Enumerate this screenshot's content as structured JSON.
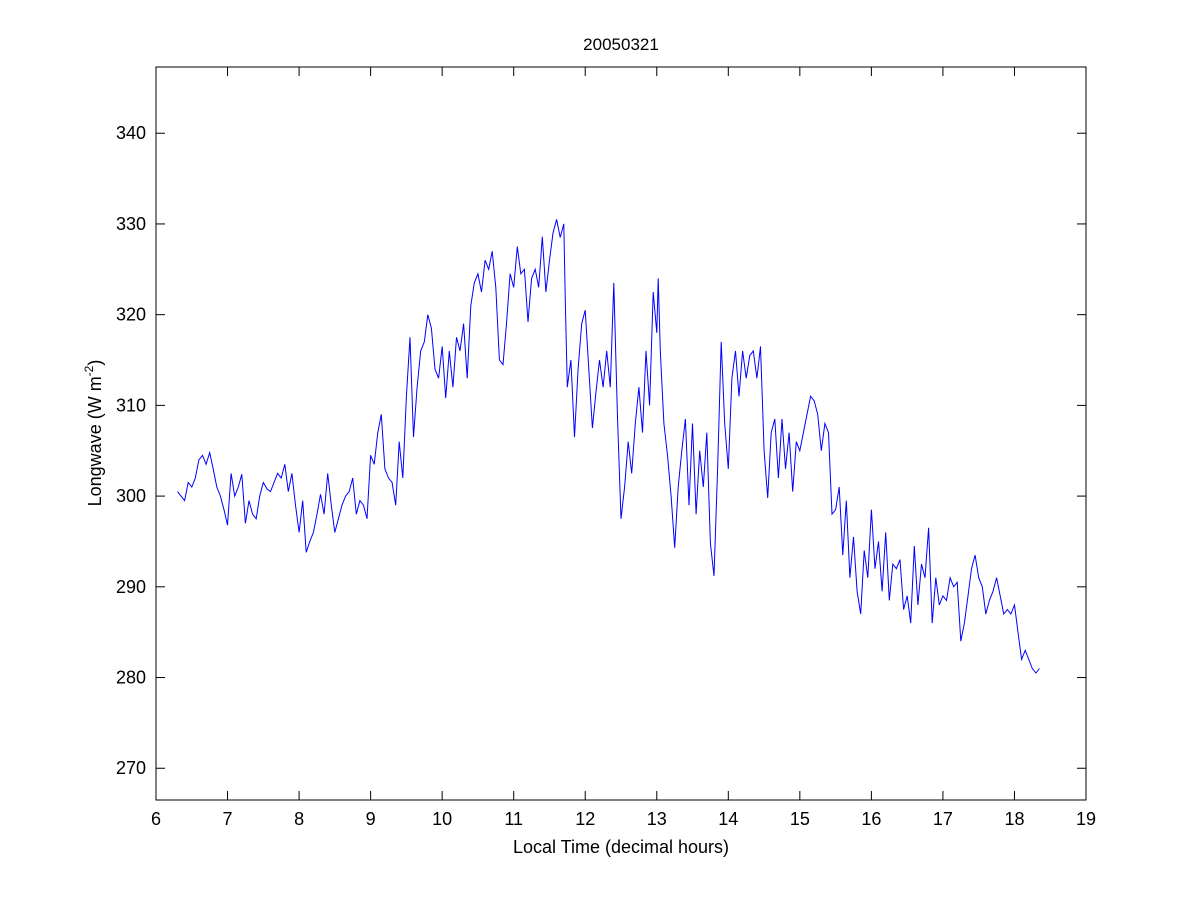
{
  "chart_data": {
    "type": "line",
    "title": "20050321",
    "xlabel": "Local Time (decimal hours)",
    "ylabel": {
      "base": "Longwave (W m",
      "sup": "-2",
      "end": ")"
    },
    "xlim": [
      6,
      19
    ],
    "ylim": [
      266.5,
      347.3
    ],
    "xticks": [
      6,
      7,
      8,
      9,
      10,
      11,
      12,
      13,
      14,
      15,
      16,
      17,
      18,
      19
    ],
    "yticks": [
      270,
      280,
      290,
      300,
      310,
      320,
      330,
      340
    ],
    "grid": false,
    "line_color": "#0000ff",
    "x": [
      6.3,
      6.35,
      6.4,
      6.45,
      6.5,
      6.55,
      6.6,
      6.65,
      6.7,
      6.75,
      6.8,
      6.85,
      6.9,
      6.95,
      7.0,
      7.05,
      7.1,
      7.15,
      7.2,
      7.25,
      7.3,
      7.35,
      7.4,
      7.45,
      7.5,
      7.55,
      7.6,
      7.65,
      7.7,
      7.75,
      7.8,
      7.85,
      7.9,
      7.95,
      8.0,
      8.05,
      8.1,
      8.15,
      8.2,
      8.25,
      8.3,
      8.35,
      8.4,
      8.45,
      8.5,
      8.55,
      8.6,
      8.65,
      8.7,
      8.75,
      8.8,
      8.85,
      8.9,
      8.95,
      9.0,
      9.05,
      9.1,
      9.15,
      9.2,
      9.25,
      9.3,
      9.35,
      9.4,
      9.45,
      9.5,
      9.55,
      9.6,
      9.65,
      9.7,
      9.75,
      9.8,
      9.85,
      9.9,
      9.95,
      10.0,
      10.05,
      10.1,
      10.15,
      10.2,
      10.25,
      10.3,
      10.35,
      10.4,
      10.45,
      10.5,
      10.55,
      10.6,
      10.65,
      10.7,
      10.75,
      10.8,
      10.85,
      10.9,
      10.95,
      11.0,
      11.05,
      11.1,
      11.15,
      11.2,
      11.25,
      11.3,
      11.35,
      11.4,
      11.45,
      11.5,
      11.55,
      11.6,
      11.65,
      11.7,
      11.72,
      11.75,
      11.8,
      11.85,
      11.9,
      11.95,
      12.0,
      12.05,
      12.1,
      12.15,
      12.2,
      12.25,
      12.3,
      12.35,
      12.4,
      12.45,
      12.5,
      12.55,
      12.6,
      12.65,
      12.7,
      12.75,
      12.8,
      12.85,
      12.9,
      12.95,
      13.0,
      13.02,
      13.05,
      13.1,
      13.15,
      13.2,
      13.25,
      13.3,
      13.35,
      13.4,
      13.45,
      13.5,
      13.55,
      13.6,
      13.65,
      13.7,
      13.75,
      13.8,
      13.85,
      13.9,
      13.95,
      14.0,
      14.05,
      14.1,
      14.15,
      14.2,
      14.25,
      14.3,
      14.35,
      14.4,
      14.45,
      14.5,
      14.55,
      14.6,
      14.65,
      14.7,
      14.75,
      14.8,
      14.85,
      14.9,
      14.95,
      15.0,
      15.05,
      15.1,
      15.15,
      15.2,
      15.25,
      15.3,
      15.35,
      15.4,
      15.45,
      15.5,
      15.55,
      15.6,
      15.65,
      15.7,
      15.75,
      15.8,
      15.85,
      15.9,
      15.95,
      16.0,
      16.05,
      16.1,
      16.15,
      16.2,
      16.25,
      16.3,
      16.35,
      16.4,
      16.45,
      16.5,
      16.55,
      16.6,
      16.65,
      16.7,
      16.75,
      16.8,
      16.85,
      16.9,
      16.95,
      17.0,
      17.05,
      17.1,
      17.15,
      17.2,
      17.25,
      17.3,
      17.35,
      17.4,
      17.45,
      17.5,
      17.55,
      17.6,
      17.65,
      17.7,
      17.75,
      17.8,
      17.85,
      17.9,
      17.95,
      18.0,
      18.05,
      18.1,
      18.15,
      18.2,
      18.25,
      18.3,
      18.35
    ],
    "y": [
      300.5,
      300,
      299.5,
      301.5,
      301,
      302,
      304,
      304.5,
      303.5,
      304.8,
      303,
      301,
      300,
      298.5,
      296.8,
      302.5,
      300,
      301,
      302.4,
      297,
      299.5,
      298,
      297.5,
      300,
      301.5,
      300.8,
      300.5,
      301.5,
      302.5,
      302,
      303.5,
      300.5,
      302.5,
      299,
      296,
      299.5,
      293.8,
      295,
      296,
      298,
      300.2,
      298,
      302.5,
      299,
      296,
      297.5,
      299,
      300,
      300.5,
      302,
      298,
      299.5,
      299,
      297.5,
      304.5,
      303.5,
      307,
      309,
      303,
      302,
      301.5,
      299,
      306,
      302,
      311,
      317.5,
      306.5,
      312,
      316,
      317,
      320,
      318.5,
      314,
      313,
      316.5,
      310.8,
      316,
      312,
      317.5,
      316,
      319,
      313,
      321,
      323.5,
      324.5,
      322.5,
      326,
      325,
      327,
      323,
      315,
      314.5,
      319,
      324.5,
      323,
      327.5,
      324.5,
      325,
      319.2,
      324,
      325,
      323,
      328.6,
      322.5,
      326,
      329,
      330.5,
      328.5,
      330,
      322,
      312,
      315,
      306.5,
      314,
      319,
      320.5,
      314,
      307.5,
      311.5,
      315,
      312,
      316,
      312,
      323.5,
      309,
      297.5,
      301,
      306,
      302.5,
      308,
      312,
      307,
      316,
      310,
      322.5,
      318,
      324,
      316,
      308,
      304.5,
      300,
      294.3,
      301,
      305,
      308.5,
      299,
      308,
      298,
      305,
      301,
      307,
      294.8,
      291.2,
      303,
      317,
      308,
      303,
      313,
      316,
      311,
      316,
      313,
      315.5,
      316,
      313,
      316.5,
      305,
      299.8,
      307,
      308.5,
      302,
      308.5,
      303,
      307,
      300.5,
      306,
      305,
      307,
      309,
      311,
      310.5,
      309,
      305,
      308,
      307,
      298,
      298.5,
      301,
      293.5,
      299.5,
      291,
      295.5,
      289.5,
      287,
      294,
      291,
      298.5,
      292,
      295,
      289.5,
      296,
      288.5,
      292.5,
      292,
      293,
      287.5,
      289,
      286,
      294.5,
      288,
      292.5,
      291,
      296.5,
      286,
      291,
      288,
      289,
      288.5,
      291,
      290,
      290.5,
      284,
      286,
      289,
      292,
      293.5,
      291,
      290,
      287,
      288.5,
      289.5,
      291,
      289,
      287,
      287.5,
      287,
      288,
      285,
      282,
      283,
      282,
      281,
      280.5,
      281
    ]
  }
}
